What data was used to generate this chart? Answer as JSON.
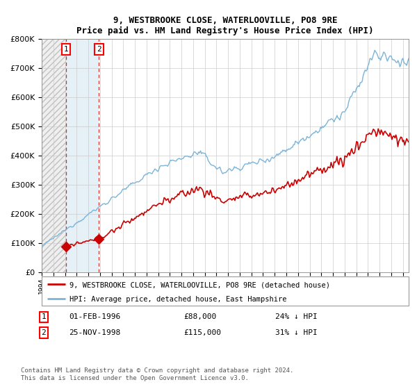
{
  "title": "9, WESTBROOKE CLOSE, WATERLOOVILLE, PO8 9RE",
  "subtitle": "Price paid vs. HM Land Registry's House Price Index (HPI)",
  "ylim": [
    0,
    800000
  ],
  "xlim_start": 1994.0,
  "xlim_end": 2025.5,
  "hpi_color": "#7ab4d8",
  "price_color": "#cc0000",
  "sale1_year": 1996.08,
  "sale1_price": 88000,
  "sale2_year": 1998.92,
  "sale2_price": 115000,
  "legend_property": "9, WESTBROOKE CLOSE, WATERLOOVILLE, PO8 9RE (detached house)",
  "legend_hpi": "HPI: Average price, detached house, East Hampshire",
  "footer": "Contains HM Land Registry data © Crown copyright and database right 2024.\nThis data is licensed under the Open Government Licence v3.0.",
  "annotation1_date": "01-FEB-1996",
  "annotation1_price": "£88,000",
  "annotation1_pct": "24% ↓ HPI",
  "annotation2_date": "25-NOV-1998",
  "annotation2_price": "£115,000",
  "annotation2_pct": "31% ↓ HPI"
}
